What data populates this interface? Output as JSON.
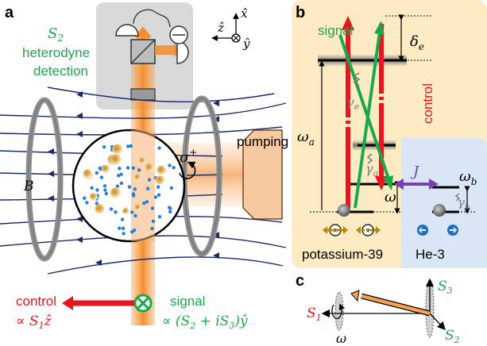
{
  "panels": {
    "a": "a",
    "b": "b",
    "c": "c"
  },
  "panel_a": {
    "detection_line1": "S",
    "detection_sub": "2",
    "detection_line2": "heterodyne",
    "detection_line3": "detection",
    "pumping": "pumping",
    "b_field": "B",
    "sigma": "σ",
    "sigma_sup": "+",
    "axis_x": "x̂",
    "axis_z": "ẑ",
    "axis_y": "ŷ",
    "control_label": "control",
    "control_expr": "∝ S",
    "control_sub": "1",
    "control_tail": "ẑ",
    "signal_label": "signal",
    "signal_expr_a": "∝ (S",
    "signal_sub_a": "2",
    "signal_expr_b": " + iS",
    "signal_sub_b": "3",
    "signal_expr_c": ")ŷ"
  },
  "panel_b": {
    "signal": "signal",
    "control": "control",
    "delta_e": "δ",
    "delta_e_sub": "e",
    "omega_a": "ω",
    "omega_a_sub": "a",
    "omega": "ω",
    "omega_b": "ω",
    "omega_b_sub": "b",
    "gamma_e": "γ",
    "gamma_e_sub": "e",
    "gamma_a": "γ",
    "gamma_a_sub": "a",
    "gamma_b": "γ",
    "gamma_b_sub": "b",
    "coupling": "J",
    "potassium": "potassium-39",
    "helium": "He-3"
  },
  "panel_c": {
    "s1": "S",
    "s1_sub": "1",
    "s2": "S",
    "s2_sub": "2",
    "s3": "S",
    "s3_sub": "3",
    "omega": "ω"
  },
  "colors": {
    "red": "#e8141e",
    "green": "#1aa84a",
    "orange": "#f6a24f",
    "purple": "#7b3fb0",
    "blue_field": "#1a2a6e",
    "potassium_bg": "#fdebc4",
    "helium_bg": "#d9e6f5"
  }
}
